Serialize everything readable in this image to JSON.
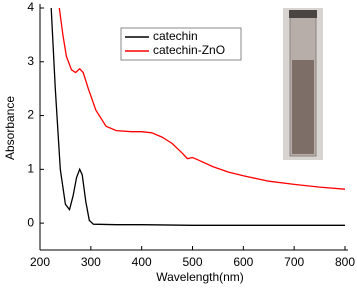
{
  "chart_data": {
    "type": "line",
    "x_label": "Wavelength(nm)",
    "y_label": "Absorbance",
    "xlim": [
      200,
      800
    ],
    "xticks": [
      200,
      300,
      400,
      500,
      600,
      700,
      800
    ],
    "ylim": [
      -0.5,
      4
    ],
    "yticks": [
      0,
      1,
      2,
      3,
      4
    ],
    "legend": "upper center",
    "series": [
      {
        "name": "catechin",
        "color": "#000000",
        "x": [
          222,
          230,
          240,
          250,
          258,
          265,
          272,
          278,
          283,
          290,
          297,
          305,
          350,
          400,
          500,
          600,
          700,
          800
        ],
        "values": [
          4.0,
          2.5,
          1.0,
          0.35,
          0.25,
          0.5,
          0.85,
          1.0,
          0.9,
          0.4,
          0.05,
          -0.02,
          -0.03,
          -0.03,
          -0.04,
          -0.04,
          -0.04,
          -0.04
        ]
      },
      {
        "name": "catechin-ZnO",
        "color": "#ff0000",
        "x": [
          238,
          245,
          252,
          262,
          270,
          278,
          285,
          295,
          310,
          330,
          350,
          380,
          400,
          420,
          440,
          460,
          480,
          490,
          500,
          510,
          540,
          570,
          600,
          650,
          700,
          750,
          800
        ],
        "values": [
          4.0,
          3.5,
          3.1,
          2.85,
          2.8,
          2.87,
          2.8,
          2.5,
          2.1,
          1.8,
          1.72,
          1.7,
          1.7,
          1.68,
          1.6,
          1.48,
          1.3,
          1.2,
          1.22,
          1.18,
          1.05,
          0.95,
          0.88,
          0.78,
          0.72,
          0.67,
          0.63
        ]
      }
    ]
  }
}
